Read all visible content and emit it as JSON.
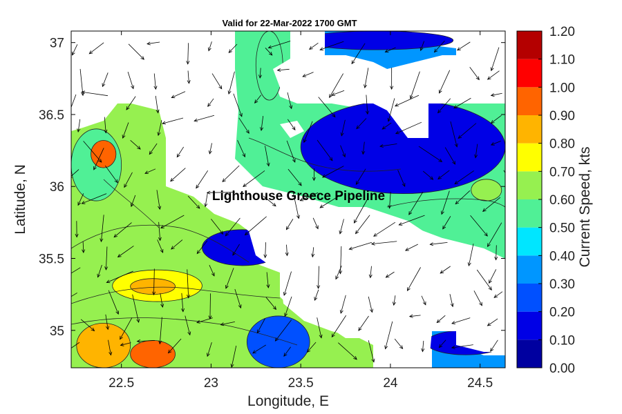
{
  "chart_data": {
    "type": "heatmap",
    "title": "Valid for 22-Mar-2022 1700 GMT",
    "xlabel": "Longitude, E",
    "ylabel": "Latitude, N",
    "colorbar_label": "Current Speed, kts",
    "annotation": "Lighthouse Greece Pipeline",
    "xlim": [
      22.22,
      24.64
    ],
    "ylim": [
      34.74,
      37.08
    ],
    "xticks": [
      22.5,
      23,
      23.5,
      24,
      24.5
    ],
    "xtick_labels": [
      "22.5",
      "23",
      "23.5",
      "24",
      "24.5"
    ],
    "yticks": [
      35,
      35.5,
      36,
      36.5,
      37
    ],
    "ytick_labels": [
      "35",
      "35.5",
      "36",
      "36.5",
      "37"
    ],
    "colorbar": {
      "min": 0.0,
      "max": 1.2,
      "levels": [
        0.0,
        0.1,
        0.2,
        0.3,
        0.4,
        0.5,
        0.6,
        0.7,
        0.8,
        0.9,
        1.0,
        1.1,
        1.2
      ],
      "labels": [
        "0.00",
        "0.10",
        "0.20",
        "0.30",
        "0.40",
        "0.50",
        "0.60",
        "0.70",
        "0.80",
        "0.90",
        "1.00",
        "1.10",
        "1.20"
      ],
      "colors": [
        "#0000a0",
        "#0000e6",
        "#0050ff",
        "#0096ff",
        "#00e6ff",
        "#50f096",
        "#96f050",
        "#ffff00",
        "#ffb400",
        "#ff6400",
        "#ff0000",
        "#b40000"
      ]
    },
    "grid": false,
    "legend": "colorbar-right",
    "regions": [
      {
        "lon": [
          22.22,
          22.5
        ],
        "lat": [
          35.9,
          36.4
        ],
        "speed": 0.55
      },
      {
        "lon": [
          22.33,
          22.47
        ],
        "lat": [
          36.13,
          36.32
        ],
        "speed": 0.95
      },
      {
        "lon": [
          22.25,
          22.55
        ],
        "lat": [
          34.74,
          35.05
        ],
        "speed": 0.8
      },
      {
        "lon": [
          22.55,
          22.8
        ],
        "lat": [
          34.74,
          34.93
        ],
        "speed": 0.95
      },
      {
        "lon": [
          22.45,
          22.95
        ],
        "lat": [
          35.2,
          35.42
        ],
        "speed": 0.75
      },
      {
        "lon": [
          22.55,
          22.8
        ],
        "lat": [
          35.25,
          35.36
        ],
        "speed": 0.85
      },
      {
        "lon": [
          22.95,
          23.4
        ],
        "lat": [
          35.45,
          35.7
        ],
        "speed": 0.15
      },
      {
        "lon": [
          23.2,
          23.55
        ],
        "lat": [
          34.74,
          35.1
        ],
        "speed": 0.2
      },
      {
        "lon": [
          23.5,
          24.64
        ],
        "lat": [
          35.95,
          36.6
        ],
        "speed": 0.1
      },
      {
        "lon": [
          24.2,
          24.64
        ],
        "lat": [
          34.83,
          35.0
        ],
        "speed": 0.15
      },
      {
        "lon": [
          23.5,
          24.35
        ],
        "lat": [
          36.95,
          37.08
        ],
        "speed": 0.1
      },
      {
        "lon": [
          24.45,
          24.62
        ],
        "lat": [
          35.9,
          36.05
        ],
        "speed": 0.6
      },
      {
        "lon": [
          23.25,
          23.4
        ],
        "lat": [
          36.6,
          37.08
        ],
        "speed": 0.55
      }
    ]
  }
}
